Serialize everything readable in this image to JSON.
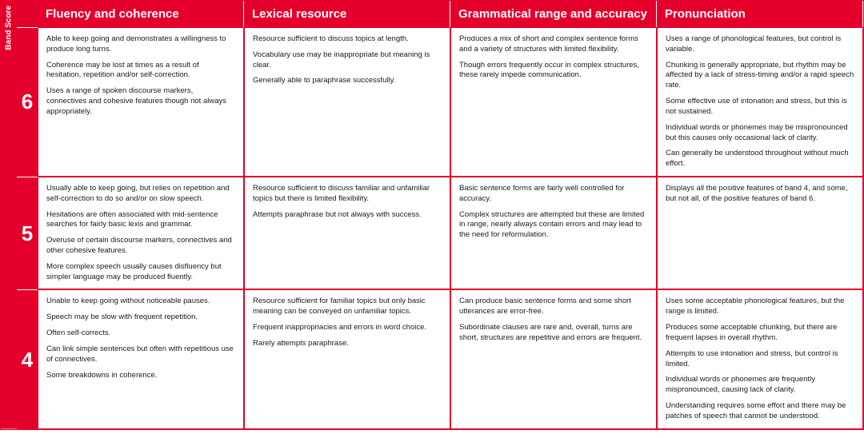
{
  "colors": {
    "brand_red": "#e4002b",
    "text": "#1a1a1a",
    "white": "#ffffff"
  },
  "band_score_label": "Band Score",
  "headers": {
    "fluency": "Fluency and coherence",
    "lexical": "Lexical resource",
    "grammar": "Grammatical range and accuracy",
    "pronunciation": "Pronunciation"
  },
  "rows": [
    {
      "score": "6",
      "fluency": [
        "Able to keep going and demonstrates a willingness to produce long turns.",
        "Coherence may be lost at times as a result of hesitation, repetition and/or self-correction.",
        "Uses a range of spoken discourse markers, connectives and cohesive features though not always appropriately."
      ],
      "lexical": [
        "Resource sufficient to discuss topics at length.",
        "Vocabulary use may be inappropriate but meaning is clear.",
        "Generally able to paraphrase successfully."
      ],
      "grammar": [
        "Produces a mix of short and complex sentence forms and a variety of structures with limited flexibility.",
        "Though errors frequently occur in complex structures, these rarely impede communication."
      ],
      "pronunciation": [
        "Uses a range of phonological features, but control is variable.",
        "Chunking is generally appropriate, but rhythm may be affected by a lack of stress-timing and/or a rapid speech rate.",
        "Some effective use of intonation and stress, but this is not sustained.",
        "Individual words or phonemes may be mispronounced but this causes only occasional lack of clarity.",
        "Can generally be understood throughout without much effort."
      ]
    },
    {
      "score": "5",
      "fluency": [
        "Usually able to keep going, but relies on repetition and self-correction to do so and/or on slow speech.",
        "Hesitations are often associated with mid-sentence searches for fairly basic lexis and grammar.",
        "Overuse of certain discourse markers, connectives and other cohesive features.",
        "More complex speech usually causes disfluency but simpler language may be produced fluently."
      ],
      "lexical": [
        "Resource sufficient to discuss familiar and unfamiliar topics but there is limited flexibility.",
        "Attempts paraphrase but not always with success."
      ],
      "grammar": [
        "Basic sentence forms are fairly well controlled for accuracy.",
        "Complex structures are attempted but these are limited in range, nearly always contain errors and may lead to the need for reformulation."
      ],
      "pronunciation": [
        "Displays all the positive features of band 4, and some, but not all, of the positive features of band 6."
      ]
    },
    {
      "score": "4",
      "fluency": [
        "Unable to keep going without noticeable pauses.",
        "Speech may be slow with frequent repetition.",
        "Often self-corrects.",
        "Can link simple sentences but often with repetitious use of connectives.",
        "Some breakdowns in coherence."
      ],
      "lexical": [
        "Resource sufficient for familiar topics but only basic meaning can be conveyed on unfamiliar topics.",
        "Frequent inappropriacies and errors in word choice.",
        "Rarely attempts paraphrase."
      ],
      "grammar": [
        "Can produce basic sentence forms and some short utterances are error-free.",
        "Subordinate clauses are rare and, overall, turns are short, structures are repetitive and errors are frequent."
      ],
      "pronunciation": [
        "Uses some acceptable phonological features, but the range is limited.",
        "Produces some acceptable chunking, but there are frequent lapses in overall rhythm.",
        "Attempts to use intonation and stress, but control is limited.",
        "Individual words or phonemes are frequently mispronounced, causing lack of clarity.",
        "Understanding requires some effort and there may be patches of speech that cannot be understood."
      ]
    }
  ]
}
